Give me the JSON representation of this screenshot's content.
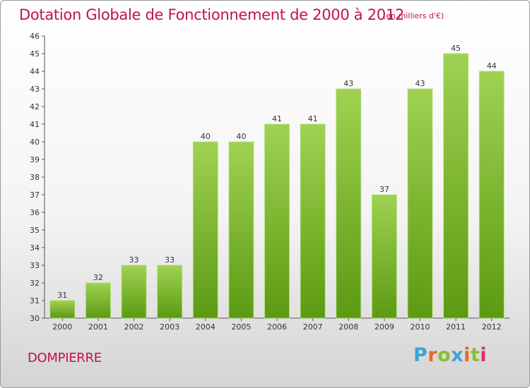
{
  "header": {
    "title": "Dotation Globale de Fonctionnement de 2000 à 2012",
    "unit": "(en milliers d'€)"
  },
  "footer": {
    "commune": "DOMPIERRE",
    "logo": "Proxiti"
  },
  "colors": {
    "title": "#c0134a",
    "bar_top": "#9fd252",
    "bar_bottom": "#5c9a12",
    "logo": [
      "#3ea3d8",
      "#e8672c",
      "#8bbf2f",
      "#3ea3d8",
      "#e8672c",
      "#8bbf2f",
      "#e32a78"
    ]
  },
  "chart_data": {
    "type": "bar",
    "categories": [
      "2000",
      "2001",
      "2002",
      "2003",
      "2004",
      "2005",
      "2006",
      "2007",
      "2008",
      "2009",
      "2010",
      "2011",
      "2012"
    ],
    "values": [
      31,
      32,
      33,
      33,
      40,
      40,
      41,
      41,
      43,
      37,
      43,
      45,
      44
    ],
    "ylim": [
      30,
      46
    ],
    "yticks": [
      30,
      31,
      32,
      33,
      34,
      35,
      36,
      37,
      38,
      39,
      40,
      41,
      42,
      43,
      44,
      45,
      46
    ],
    "grid": false,
    "data_labels": true
  }
}
